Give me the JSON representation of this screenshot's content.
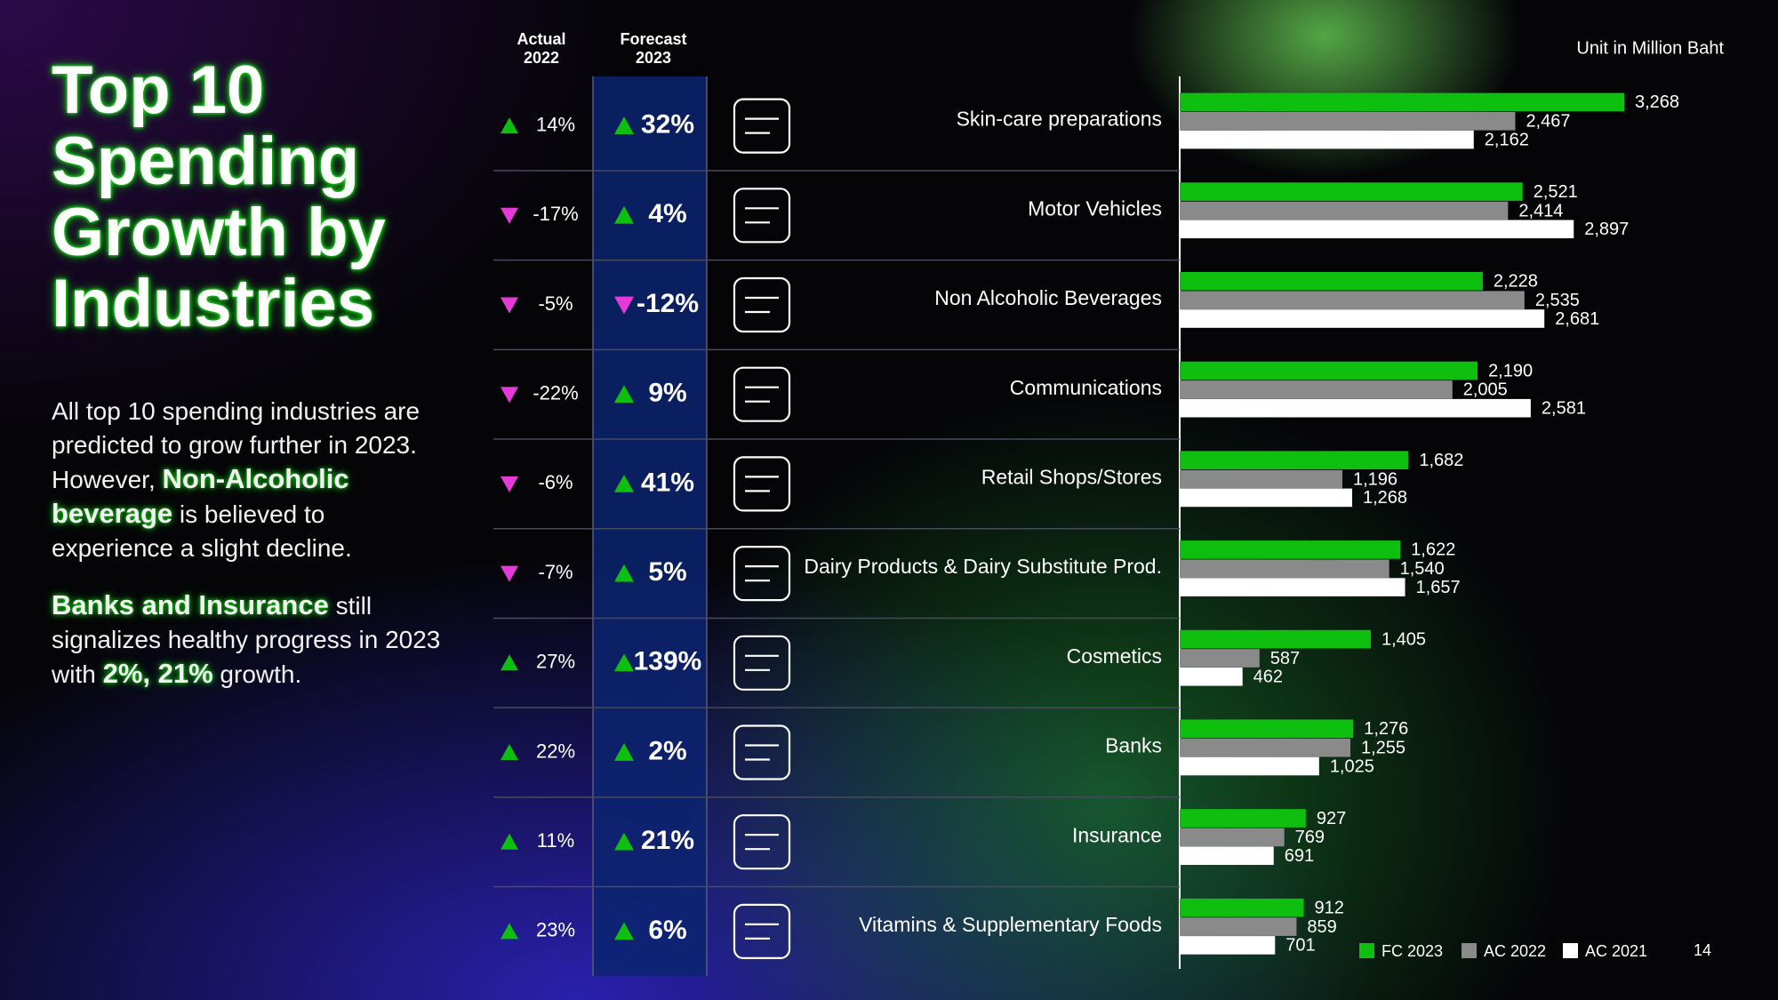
{
  "slide": {
    "title": "Top 10 Spending Growth by Industries",
    "paragraphs": [
      {
        "parts": [
          {
            "text": "All top 10 spending industries are predicted to grow further in 2023. However, ",
            "highlight": false
          },
          {
            "text": "Non-Alcoholic beverage",
            "highlight": true
          },
          {
            "text": " is believed to experience a slight decline.",
            "highlight": false
          }
        ]
      },
      {
        "parts": [
          {
            "text": "Banks and Insurance",
            "highlight": true
          },
          {
            "text": " still signalizes healthy progress in 2023 with ",
            "highlight": false
          },
          {
            "text": "2%, 21%",
            "highlight": true
          },
          {
            "text": " growth.",
            "highlight": false
          }
        ]
      }
    ],
    "unit_note": "Unit in Million Baht",
    "page_number": "14"
  },
  "table": {
    "headers": [
      [
        "Actual",
        "2022"
      ],
      [
        "Forecast",
        "2023"
      ]
    ],
    "up_color": "#0fbf0f",
    "down_color": "#e53ad8",
    "rows": [
      [
        "14%",
        "32%"
      ],
      [
        "-17%",
        "4%"
      ],
      [
        "-5%",
        "-12%"
      ],
      [
        "-22%",
        "9%"
      ],
      [
        "-6%",
        "41%"
      ],
      [
        "-7%",
        "5%"
      ],
      [
        "27%",
        "139%"
      ],
      [
        "22%",
        "2%"
      ],
      [
        "11%",
        "21%"
      ],
      [
        "23%",
        "6%"
      ]
    ]
  },
  "chart_data": {
    "type": "bar",
    "orientation": "horizontal",
    "categories": [
      "Skin-care preparations",
      "Motor Vehicles",
      "Non Alcoholic Beverages",
      "Communications",
      "Retail Shops/Stores",
      "Dairy Products & Dairy Substitute Prod.",
      "Cosmetics",
      "Banks",
      "Insurance",
      "Vitamins & Supplementary Foods"
    ],
    "series": [
      {
        "name": "FC 2023",
        "color": "#0fbf0f",
        "values": [
          3268,
          2521,
          2228,
          2190,
          1682,
          1622,
          1405,
          1276,
          927,
          912
        ],
        "value_labels": [
          "3,268",
          "2,521",
          "2,228",
          "2,190",
          "1,682",
          "1,622",
          "1,405",
          "1,276",
          "927",
          "912"
        ]
      },
      {
        "name": "AC 2022",
        "color": "#8a8a8a",
        "values": [
          2467,
          2414,
          2535,
          2005,
          1196,
          1540,
          587,
          1255,
          769,
          859
        ],
        "value_labels": [
          "2,467",
          "2,414",
          "2,535",
          "2,005",
          "1,196",
          "1,540",
          "587",
          "1,255",
          "769",
          "859"
        ]
      },
      {
        "name": "AC 2021",
        "color": "#ffffff",
        "values": [
          2162,
          2897,
          2681,
          2581,
          1268,
          1657,
          462,
          1025,
          691,
          701
        ],
        "value_labels": [
          "2,162",
          "2,897",
          "2,681",
          "2,581",
          "1,268",
          "1,657",
          "462",
          "1,025",
          "691",
          "701"
        ]
      }
    ],
    "xlim": [
      0,
      4000
    ]
  }
}
